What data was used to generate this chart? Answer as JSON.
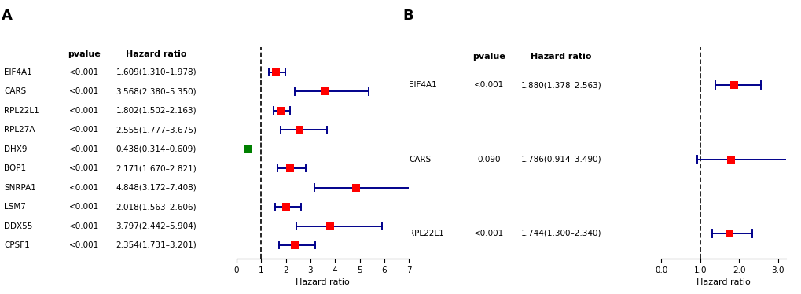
{
  "panel_A": {
    "genes": [
      "EIF4A1",
      "CARS",
      "RPL22L1",
      "RPL27A",
      "DHX9",
      "BOP1",
      "SNRPA1",
      "LSM7",
      "DDX55",
      "CPSF1"
    ],
    "pvalues": [
      "<0.001",
      "<0.001",
      "<0.001",
      "<0.001",
      "<0.001",
      "<0.001",
      "<0.001",
      "<0.001",
      "<0.001",
      "<0.001"
    ],
    "hr_labels": [
      "1.609(1.310–1.978)",
      "3.568(2.380–5.350)",
      "1.802(1.502–2.163)",
      "2.555(1.777–3.675)",
      "0.438(0.314–0.609)",
      "2.171(1.670–2.821)",
      "4.848(3.172–7.408)",
      "2.018(1.563–2.606)",
      "3.797(2.442–5.904)",
      "2.354(1.731–3.201)"
    ],
    "hr": [
      1.609,
      3.568,
      1.802,
      2.555,
      0.438,
      2.171,
      4.848,
      2.018,
      3.797,
      2.354
    ],
    "ci_low": [
      1.31,
      2.38,
      1.502,
      1.777,
      0.314,
      1.67,
      3.172,
      1.563,
      2.442,
      1.731
    ],
    "ci_high": [
      1.978,
      5.35,
      2.163,
      3.675,
      0.609,
      2.821,
      7.408,
      2.606,
      5.904,
      3.201
    ],
    "colors": [
      "red",
      "red",
      "red",
      "red",
      "green",
      "red",
      "red",
      "red",
      "red",
      "red"
    ],
    "xlim": [
      0,
      7
    ],
    "xticks": [
      0,
      1,
      2,
      3,
      4,
      5,
      6,
      7
    ],
    "xticklabels": [
      "0",
      "1",
      "2",
      "3",
      "4",
      "5",
      "6",
      "7"
    ],
    "vline": 1,
    "xlabel": "Hazard ratio"
  },
  "panel_B": {
    "genes": [
      "EIF4A1",
      "CARS",
      "RPL22L1"
    ],
    "pvalues": [
      "<0.001",
      "0.090",
      "<0.001"
    ],
    "hr_labels": [
      "1.880(1.378–2.563)",
      "1.786(0.914–3.490)",
      "1.744(1.300–2.340)"
    ],
    "hr": [
      1.88,
      1.786,
      1.744
    ],
    "ci_low": [
      1.378,
      0.914,
      1.3
    ],
    "ci_high": [
      2.563,
      3.49,
      2.34
    ],
    "colors": [
      "red",
      "red",
      "red"
    ],
    "xlim": [
      0.0,
      3.2
    ],
    "xticks": [
      0.0,
      1.0,
      2.0,
      3.0
    ],
    "xticklabels": [
      "0.0",
      "1.0",
      "2.0",
      "3.0"
    ],
    "vline": 1.0,
    "xlabel": "Hazard ratio"
  },
  "bg_color": "#ffffff",
  "text_color": "#000000",
  "line_color": "#00008B",
  "marker_size": 7,
  "font_size": 7.5,
  "label_A": "A",
  "label_B": "B"
}
